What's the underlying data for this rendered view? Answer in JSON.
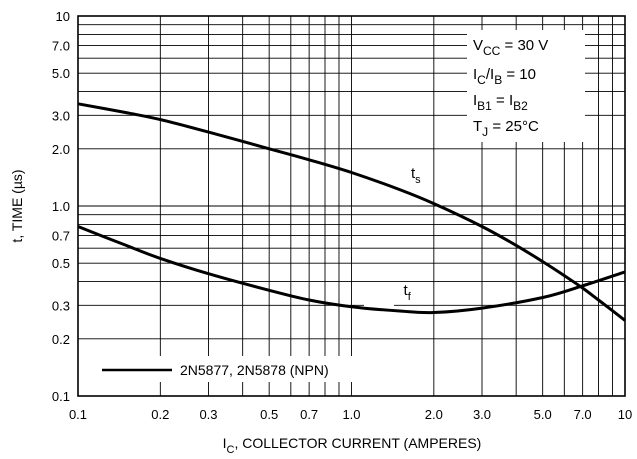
{
  "chart_data": {
    "type": "line",
    "x_scale": "log",
    "y_scale": "log",
    "xlim": [
      0.1,
      10
    ],
    "ylim": [
      0.1,
      10
    ],
    "grid": true,
    "xlabel": {
      "main": "I",
      "sub": "C",
      "rest": ", COLLECTOR CURRENT (AMPERES)"
    },
    "ylabel": "t, TIME (µs)",
    "x_ticks": [
      {
        "value": 0.1,
        "label": "0.1"
      },
      {
        "value": 0.2,
        "label": "0.2"
      },
      {
        "value": 0.3,
        "label": "0.3"
      },
      {
        "value": 0.5,
        "label": "0.5"
      },
      {
        "value": 0.7,
        "label": "0.7"
      },
      {
        "value": 1.0,
        "label": "1.0"
      },
      {
        "value": 2.0,
        "label": "2.0"
      },
      {
        "value": 3.0,
        "label": "3.0"
      },
      {
        "value": 5.0,
        "label": "5.0"
      },
      {
        "value": 7.0,
        "label": "7.0"
      },
      {
        "value": 10,
        "label": "10"
      }
    ],
    "y_ticks": [
      {
        "value": 0.1,
        "label": "0.1"
      },
      {
        "value": 0.2,
        "label": "0.2"
      },
      {
        "value": 0.3,
        "label": "0.3"
      },
      {
        "value": 0.5,
        "label": "0.5"
      },
      {
        "value": 0.7,
        "label": "0.7"
      },
      {
        "value": 1.0,
        "label": "1.0"
      },
      {
        "value": 2.0,
        "label": "2.0"
      },
      {
        "value": 3.0,
        "label": "3.0"
      },
      {
        "value": 5.0,
        "label": "5.0"
      },
      {
        "value": 7.0,
        "label": "7.0"
      },
      {
        "value": 10,
        "label": "10"
      }
    ],
    "conditions": [
      {
        "main": "V",
        "sub": "CC",
        "rest": " = 30 V"
      },
      {
        "main": "I",
        "sub": "C",
        "rest": "/I",
        "sub2": "B",
        "rest2": " = 10"
      },
      {
        "main": "I",
        "sub": "B1",
        "rest": " = I",
        "sub2": "B2",
        "rest2": ""
      },
      {
        "main": "T",
        "sub": "J",
        "rest": " = 25°C"
      }
    ],
    "series": [
      {
        "name": "ts",
        "label_main": "t",
        "label_sub": "s",
        "label_at": [
          1.65,
          1.4
        ],
        "x": [
          0.1,
          0.15,
          0.2,
          0.3,
          0.5,
          0.7,
          1.0,
          1.5,
          2.0,
          3.0,
          4.0,
          5.0,
          6.0,
          7.0,
          8.0,
          10
        ],
        "y": [
          3.45,
          3.1,
          2.85,
          2.45,
          2.0,
          1.75,
          1.5,
          1.22,
          1.03,
          0.78,
          0.62,
          0.51,
          0.43,
          0.37,
          0.32,
          0.25
        ]
      },
      {
        "name": "tf",
        "label_main": "t",
        "label_sub": "f",
        "label_at": [
          1.55,
          0.34
        ],
        "x": [
          0.1,
          0.15,
          0.2,
          0.3,
          0.5,
          0.7,
          1.0,
          1.5,
          2.0,
          3.0,
          5.0,
          7.0,
          10
        ],
        "y": [
          0.78,
          0.62,
          0.53,
          0.44,
          0.36,
          0.32,
          0.295,
          0.28,
          0.275,
          0.29,
          0.33,
          0.38,
          0.45
        ]
      }
    ],
    "legend": {
      "text": "2N5877, 2N5878 (NPN)",
      "placement": "bottom-left"
    }
  }
}
